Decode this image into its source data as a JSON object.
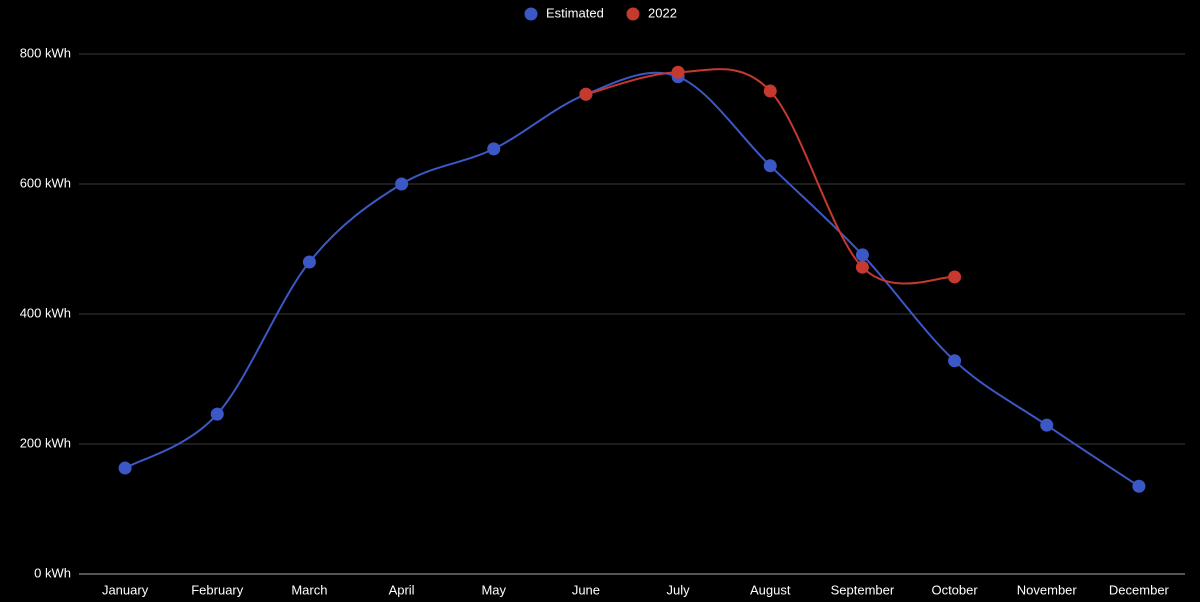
{
  "chart_data": {
    "type": "line",
    "categories": [
      "January",
      "February",
      "March",
      "April",
      "May",
      "June",
      "July",
      "August",
      "September",
      "October",
      "November",
      "December"
    ],
    "series": [
      {
        "name": "Estimated",
        "color": "#3b58c6",
        "values": [
          163,
          246,
          480,
          600,
          654,
          738,
          765,
          628,
          491,
          328,
          229,
          135
        ]
      },
      {
        "name": "2022",
        "color": "#c5392f",
        "values": [
          null,
          null,
          null,
          null,
          null,
          738,
          772,
          743,
          472,
          457,
          null,
          null
        ]
      }
    ],
    "ylim": [
      0,
      800
    ],
    "yticks": [
      {
        "value": 0,
        "label": "0 kWh"
      },
      {
        "value": 200,
        "label": "200 kWh"
      },
      {
        "value": 400,
        "label": "400 kWh"
      },
      {
        "value": 600,
        "label": "600 kWh"
      },
      {
        "value": 800,
        "label": "800 kWh"
      }
    ],
    "grid": true,
    "legend": "top",
    "curve": "smooth"
  }
}
